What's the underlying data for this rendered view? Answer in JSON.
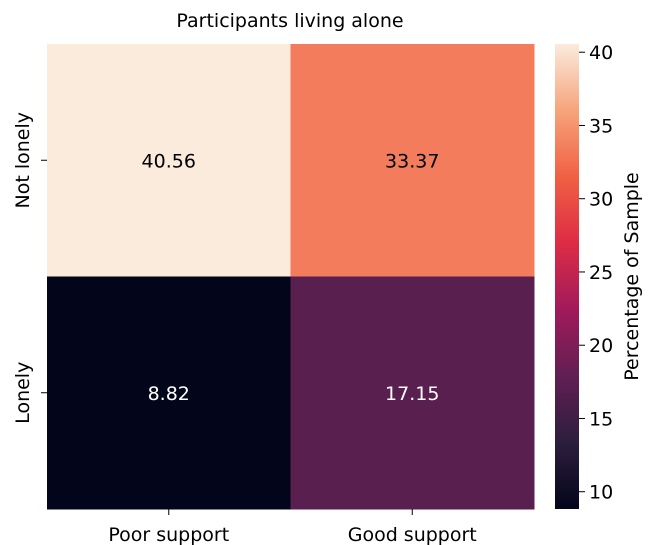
{
  "chart_data": {
    "type": "heatmap",
    "title": "Participants living alone",
    "x_categories": [
      "Poor support",
      "Good support"
    ],
    "y_categories": [
      "Not lonely",
      "Lonely"
    ],
    "values": [
      [
        40.56,
        33.37
      ],
      [
        8.82,
        17.15
      ]
    ],
    "value_labels": [
      [
        "40.56",
        "33.37"
      ],
      [
        "8.82",
        "17.15"
      ]
    ],
    "colorbar": {
      "label": "Percentage of Sample",
      "min": 8.82,
      "max": 40.56,
      "ticks": [
        10,
        15,
        20,
        25,
        30,
        35,
        40
      ],
      "tick_labels": [
        "10",
        "15",
        "20",
        "25",
        "30",
        "35",
        "40"
      ],
      "colormap": "rocket",
      "stops": [
        "#03051a",
        "#2c1e3d",
        "#611f53",
        "#a11a5b",
        "#dd2c45",
        "#f06043",
        "#f6a47c",
        "#faebdd"
      ]
    },
    "grid": false
  }
}
